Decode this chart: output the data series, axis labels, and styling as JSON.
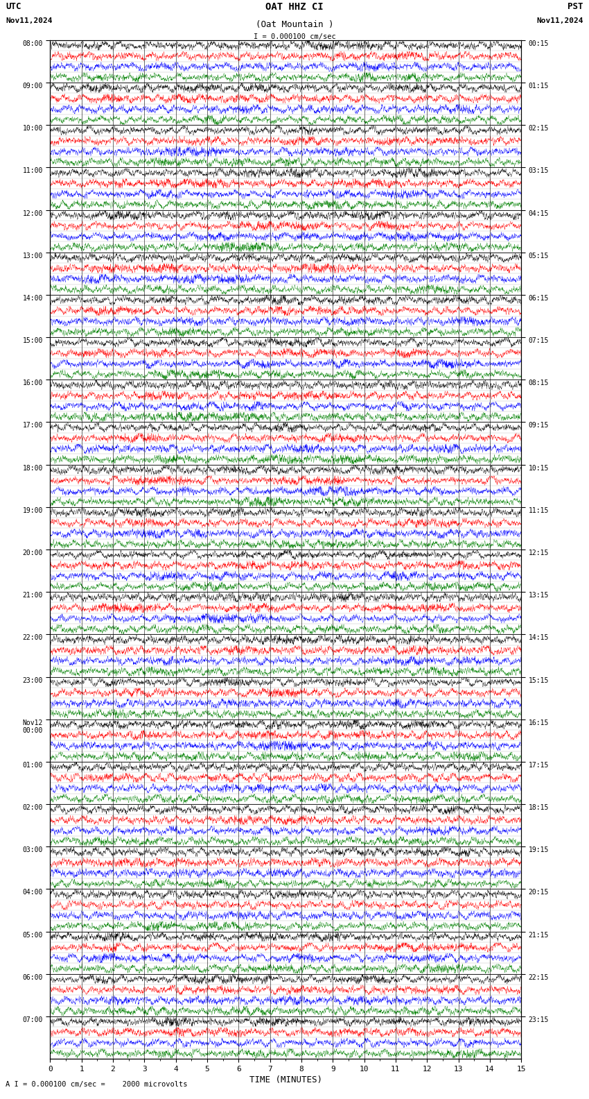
{
  "title_line1": "OAT HHZ CI",
  "title_line2": "(Oat Mountain )",
  "scale_label": "I = 0.000100 cm/sec",
  "utc_label": "UTC",
  "pst_label": "PST",
  "date_left": "Nov11,2024",
  "date_right": "Nov11,2024",
  "footer_label": "A I = 0.000100 cm/sec =    2000 microvolts",
  "xlabel": "TIME (MINUTES)",
  "left_times": [
    "08:00",
    "09:00",
    "10:00",
    "11:00",
    "12:00",
    "13:00",
    "14:00",
    "15:00",
    "16:00",
    "17:00",
    "18:00",
    "19:00",
    "20:00",
    "21:00",
    "22:00",
    "23:00",
    "Nov12\n00:00",
    "01:00",
    "02:00",
    "03:00",
    "04:00",
    "05:00",
    "06:00",
    "07:00"
  ],
  "right_times": [
    "00:15",
    "01:15",
    "02:15",
    "03:15",
    "04:15",
    "05:15",
    "06:15",
    "07:15",
    "08:15",
    "09:15",
    "10:15",
    "11:15",
    "12:15",
    "13:15",
    "14:15",
    "15:15",
    "16:15",
    "17:15",
    "18:15",
    "19:15",
    "20:15",
    "21:15",
    "22:15",
    "23:15"
  ],
  "num_rows": 96,
  "minutes_per_row": 15,
  "colors": [
    "black",
    "red",
    "blue",
    "green"
  ],
  "bg_color": "white",
  "trace_amplitude": 0.44,
  "figwidth": 8.5,
  "figheight": 15.84,
  "dpi": 100,
  "samples_per_row": 3000
}
